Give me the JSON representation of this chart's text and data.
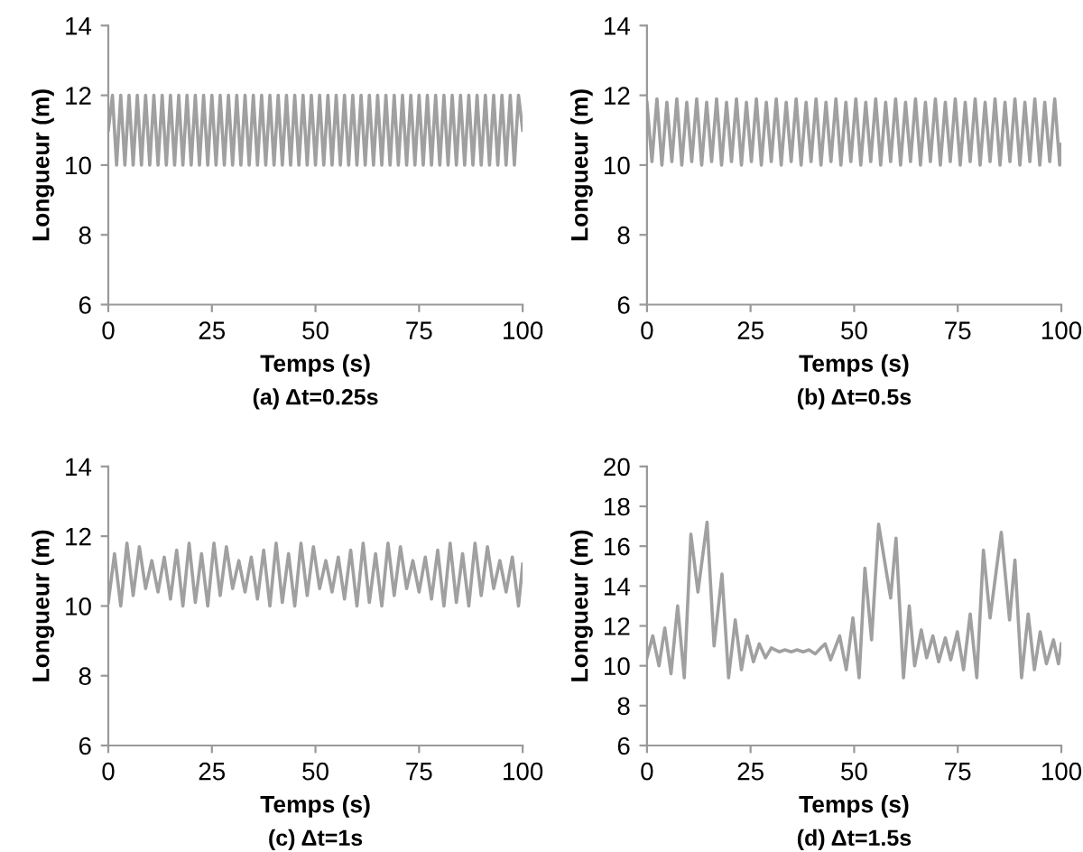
{
  "chart_data": [
    {
      "type": "line",
      "title": "(a) Δt=0.25s",
      "xlabel": "Temps (s)",
      "ylabel": "Longueur (m)",
      "xlim": [
        0,
        100
      ],
      "ylim": [
        6,
        14
      ],
      "xticks": [
        0,
        25,
        50,
        75,
        100
      ],
      "yticks": [
        6,
        8,
        10,
        12,
        14
      ],
      "x": [
        0,
        1,
        2,
        3,
        4,
        5,
        6,
        7,
        8,
        9,
        10,
        11,
        12,
        13,
        14,
        15,
        16,
        17,
        18,
        19,
        20,
        21,
        22,
        23,
        24,
        25,
        26,
        27,
        28,
        29,
        30,
        31,
        32,
        33,
        34,
        35,
        36,
        37,
        38,
        39,
        40,
        41,
        42,
        43,
        44,
        45,
        46,
        47,
        48,
        49,
        50,
        51,
        52,
        53,
        54,
        55,
        56,
        57,
        58,
        59,
        60,
        61,
        62,
        63,
        64,
        65,
        66,
        67,
        68,
        69,
        70,
        71,
        72,
        73,
        74,
        75,
        76,
        77,
        78,
        79,
        80,
        81,
        82,
        83,
        84,
        85,
        86,
        87,
        88,
        89,
        90,
        91,
        92,
        93,
        94,
        95,
        96,
        97,
        98,
        99,
        100
      ],
      "series": [
        {
          "color": "#a0a0a0",
          "values": [
            11,
            12,
            10,
            12,
            10,
            12,
            10,
            12,
            10,
            12,
            10,
            12,
            10,
            12,
            10,
            12,
            10,
            12,
            10,
            12,
            10,
            12,
            10,
            12,
            10,
            12,
            10,
            12,
            10,
            12,
            10,
            12,
            10,
            12,
            10,
            12,
            10,
            12,
            10,
            12,
            10,
            12,
            10,
            12,
            10,
            12,
            10,
            12,
            10,
            12,
            10,
            12,
            10,
            12,
            10,
            12,
            10,
            12,
            10,
            12,
            10,
            12,
            10,
            12,
            10,
            12,
            10,
            12,
            10,
            12,
            10,
            12,
            10,
            12,
            10,
            12,
            10,
            12,
            10,
            12,
            10,
            12,
            10,
            12,
            10,
            12,
            10,
            12,
            10,
            12,
            10,
            12,
            10,
            12,
            10,
            12,
            10,
            12,
            10,
            12,
            11
          ]
        }
      ]
    },
    {
      "type": "line",
      "title": "(b) Δt=0.5s",
      "xlabel": "Temps (s)",
      "ylabel": "Longueur (m)",
      "xlim": [
        0,
        100
      ],
      "ylim": [
        6,
        14
      ],
      "xticks": [
        0,
        25,
        50,
        75,
        100
      ],
      "yticks": [
        6,
        8,
        10,
        12,
        14
      ],
      "x": [
        0,
        1.2,
        2.4,
        3.6,
        4.8,
        6,
        7.2,
        8.4,
        9.6,
        10.8,
        12,
        13.2,
        14.4,
        15.6,
        16.8,
        18,
        19.2,
        20.4,
        21.6,
        22.8,
        24,
        25.2,
        26.4,
        27.6,
        28.8,
        30,
        31.2,
        32.4,
        33.6,
        34.8,
        36,
        37.2,
        38.4,
        39.6,
        40.8,
        42,
        43.2,
        44.4,
        45.6,
        46.8,
        48,
        49.2,
        50.4,
        51.6,
        52.8,
        54,
        55.2,
        56.4,
        57.6,
        58.8,
        60,
        61.2,
        62.4,
        63.6,
        64.8,
        66,
        67.2,
        68.4,
        69.6,
        70.8,
        72,
        73.2,
        74.4,
        75.6,
        76.8,
        78,
        79.2,
        80.4,
        81.6,
        82.8,
        84,
        85.2,
        86.4,
        87.6,
        88.8,
        90,
        91.2,
        92.4,
        93.6,
        94.8,
        96,
        97.2,
        98.4,
        99.6,
        100
      ],
      "series": [
        {
          "color": "#a0a0a0",
          "values": [
            11.8,
            10.1,
            11.9,
            10.0,
            11.8,
            10.1,
            11.9,
            10.0,
            11.8,
            10.1,
            11.9,
            10.0,
            11.8,
            10.1,
            11.9,
            10.0,
            11.8,
            10.1,
            11.9,
            10.0,
            11.8,
            10.1,
            11.9,
            10.0,
            11.8,
            10.1,
            11.9,
            10.0,
            11.8,
            10.1,
            11.9,
            10.0,
            11.8,
            10.1,
            11.9,
            10.0,
            11.8,
            10.1,
            11.9,
            10.0,
            11.8,
            10.1,
            11.9,
            10.0,
            11.8,
            10.1,
            11.9,
            10.0,
            11.8,
            10.1,
            11.9,
            10.0,
            11.8,
            10.1,
            11.9,
            10.0,
            11.8,
            10.1,
            11.9,
            10.0,
            11.8,
            10.1,
            11.9,
            10.0,
            11.8,
            10.1,
            11.9,
            10.0,
            11.8,
            10.1,
            11.9,
            10.0,
            11.8,
            10.1,
            11.9,
            10.0,
            11.8,
            10.1,
            11.9,
            10.0,
            11.8,
            10.1,
            11.9,
            10.0,
            10.6
          ]
        }
      ]
    },
    {
      "type": "line",
      "title": "(c) Δt=1s",
      "xlabel": "Temps (s)",
      "ylabel": "Longueur (m)",
      "xlim": [
        0,
        100
      ],
      "ylim": [
        6,
        14
      ],
      "xticks": [
        0,
        25,
        50,
        75,
        100
      ],
      "yticks": [
        6,
        8,
        10,
        12,
        14
      ],
      "x": [
        0,
        1.5,
        3,
        4.5,
        6,
        7.5,
        9,
        10.5,
        12,
        13.5,
        15,
        16.5,
        18,
        19.5,
        21,
        22.5,
        24,
        25.5,
        27,
        28.5,
        30,
        31.5,
        33,
        34.5,
        36,
        37.5,
        39,
        40.5,
        42,
        43.5,
        45,
        46.5,
        48,
        49.5,
        51,
        52.5,
        54,
        55.5,
        57,
        58.5,
        60,
        61.5,
        63,
        64.5,
        66,
        67.5,
        69,
        70.5,
        72,
        73.5,
        75,
        76.5,
        78,
        79.5,
        81,
        82.5,
        84,
        85.5,
        87,
        88.5,
        90,
        91.5,
        93,
        94.5,
        96,
        97.5,
        99,
        100
      ],
      "series": [
        {
          "color": "#a0a0a0",
          "values": [
            10.1,
            11.5,
            10.0,
            11.8,
            10.3,
            11.7,
            10.5,
            11.3,
            10.4,
            11.4,
            10.2,
            11.6,
            10.0,
            11.8,
            10.1,
            11.5,
            10.0,
            11.8,
            10.3,
            11.7,
            10.5,
            11.3,
            10.4,
            11.4,
            10.2,
            11.6,
            10.0,
            11.8,
            10.1,
            11.5,
            10.0,
            11.8,
            10.3,
            11.7,
            10.5,
            11.3,
            10.4,
            11.4,
            10.2,
            11.6,
            10.0,
            11.8,
            10.1,
            11.5,
            10.0,
            11.8,
            10.3,
            11.7,
            10.5,
            11.3,
            10.4,
            11.4,
            10.2,
            11.6,
            10.0,
            11.8,
            10.1,
            11.5,
            10.0,
            11.8,
            10.3,
            11.7,
            10.5,
            11.3,
            10.4,
            11.4,
            10.0,
            11.2
          ]
        }
      ]
    },
    {
      "type": "line",
      "title": "(d) Δt=1.5s",
      "xlabel": "Temps (s)",
      "ylabel": "Longueur (m)",
      "xlim": [
        0,
        100
      ],
      "ylim": [
        6,
        20
      ],
      "xticks": [
        0,
        25,
        50,
        75,
        100
      ],
      "yticks": [
        6,
        8,
        10,
        12,
        14,
        16,
        18,
        20
      ],
      "x": [
        0,
        1.4,
        2.9,
        4.3,
        5.8,
        7.4,
        9.0,
        10.6,
        12.3,
        14.5,
        16.2,
        18.1,
        19.7,
        21.3,
        22.8,
        24.2,
        25.7,
        27.1,
        28.6,
        30.0,
        31.9,
        33.3,
        34.8,
        36.2,
        37.7,
        39.1,
        40.6,
        42.0,
        43.0,
        44.3,
        46.5,
        48.1,
        49.7,
        51.2,
        52.6,
        54.2,
        55.9,
        58.8,
        60.1,
        61.9,
        63.3,
        64.6,
        66.2,
        67.5,
        69.0,
        70.4,
        72.0,
        73.3,
        74.9,
        76.4,
        78.0,
        79.6,
        81.2,
        82.8,
        85.5,
        87.5,
        88.8,
        90.4,
        92.0,
        93.5,
        94.9,
        96.4,
        98.1,
        99.3,
        100
      ],
      "series": [
        {
          "color": "#a0a0a0",
          "values": [
            10.4,
            11.5,
            10.0,
            11.9,
            9.6,
            13.0,
            9.4,
            16.6,
            13.7,
            17.2,
            11.0,
            14.6,
            9.4,
            12.3,
            9.8,
            11.5,
            10.2,
            11.1,
            10.4,
            10.9,
            10.7,
            10.8,
            10.7,
            10.8,
            10.7,
            10.8,
            10.6,
            10.9,
            11.1,
            10.3,
            11.5,
            9.8,
            12.4,
            9.4,
            14.9,
            11.3,
            17.1,
            13.4,
            16.4,
            9.4,
            13.0,
            10.0,
            11.8,
            10.4,
            11.5,
            10.2,
            11.4,
            10.3,
            11.7,
            9.8,
            12.6,
            9.4,
            15.8,
            12.4,
            16.7,
            12.3,
            15.3,
            9.4,
            12.6,
            9.8,
            11.7,
            10.1,
            11.3,
            10.1,
            11.1
          ]
        }
      ]
    }
  ]
}
